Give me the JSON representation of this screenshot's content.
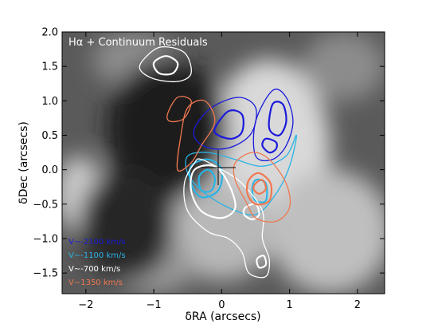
{
  "chart_data": {
    "type": "contour",
    "title": "Hα + Continuum Residuals",
    "xlabel": "δRA (arcsecs)",
    "ylabel": "δDec (arcsecs)",
    "xlim": [
      -2.35,
      2.4
    ],
    "ylim": [
      -1.8,
      2.0
    ],
    "xticks": [
      -2,
      -1,
      0,
      1,
      2
    ],
    "yticks": [
      -1.5,
      -1.0,
      -0.5,
      0.0,
      0.5,
      1.0,
      1.5,
      2.0
    ],
    "xtick_labels": [
      "−2",
      "−1",
      "0",
      "1",
      "2"
    ],
    "ytick_labels": [
      "−1.5",
      "−1.0",
      "−0.5",
      "0.0",
      "0.5",
      "1.0",
      "1.5",
      "2.0"
    ],
    "background": "grayscale image",
    "legend_placement": "lower-left",
    "series": [
      {
        "name": "V∼-2100 km/s",
        "color": "#1a1adb",
        "contours": [
          {
            "level": 1,
            "points": [
              [
                -0.4,
                0.6
              ],
              [
                -0.15,
                0.9
              ],
              [
                0.25,
                1.05
              ],
              [
                0.5,
                0.9
              ],
              [
                0.45,
                0.55
              ],
              [
                0.2,
                0.35
              ],
              [
                -0.1,
                0.3
              ],
              [
                -0.35,
                0.4
              ]
            ]
          },
          {
            "level": 2,
            "points": [
              [
                -0.1,
                0.6
              ],
              [
                0.1,
                0.85
              ],
              [
                0.3,
                0.8
              ],
              [
                0.3,
                0.55
              ],
              [
                0.15,
                0.45
              ],
              [
                -0.05,
                0.5
              ]
            ]
          },
          {
            "level": 1,
            "points": [
              [
                0.5,
                0.2
              ],
              [
                0.5,
                0.7
              ],
              [
                0.75,
                1.15
              ],
              [
                0.95,
                1.05
              ],
              [
                1.05,
                0.7
              ],
              [
                0.95,
                0.35
              ],
              [
                0.75,
                0.15
              ]
            ]
          },
          {
            "level": 2,
            "points": [
              [
                0.7,
                0.6
              ],
              [
                0.75,
                0.95
              ],
              [
                0.9,
                0.95
              ],
              [
                0.95,
                0.7
              ],
              [
                0.85,
                0.5
              ]
            ]
          },
          {
            "level": 2,
            "points": [
              [
                0.6,
                0.35
              ],
              [
                0.65,
                0.45
              ],
              [
                0.8,
                0.4
              ],
              [
                0.8,
                0.3
              ],
              [
                0.7,
                0.25
              ]
            ]
          }
        ]
      },
      {
        "name": "V∼-1100 km/s",
        "color": "#29b4e6",
        "contours": [
          {
            "level": 1,
            "points": [
              [
                -0.5,
                0.2
              ],
              [
                -0.2,
                0.25
              ],
              [
                0.2,
                0.15
              ],
              [
                0.6,
                0.05
              ],
              [
                0.95,
                0.2
              ],
              [
                1.1,
                0.5
              ],
              [
                1.0,
                0.05
              ],
              [
                0.8,
                -0.35
              ],
              [
                0.5,
                -0.65
              ],
              [
                0.1,
                -0.55
              ],
              [
                -0.3,
                -0.3
              ],
              [
                -0.5,
                -0.05
              ]
            ]
          },
          {
            "level": 2,
            "points": [
              [
                -0.45,
                0.05
              ],
              [
                -0.2,
                0.15
              ],
              [
                0.0,
                0.0
              ],
              [
                -0.05,
                -0.3
              ],
              [
                -0.3,
                -0.4
              ],
              [
                -0.45,
                -0.2
              ]
            ]
          },
          {
            "level": 3,
            "points": [
              [
                -0.33,
                -0.1
              ],
              [
                -0.2,
                0.0
              ],
              [
                -0.1,
                -0.12
              ],
              [
                -0.15,
                -0.3
              ],
              [
                -0.3,
                -0.3
              ]
            ]
          },
          {
            "level": 2,
            "points": [
              [
                0.45,
                -0.3
              ],
              [
                0.5,
                -0.15
              ],
              [
                0.65,
                -0.2
              ],
              [
                0.65,
                -0.45
              ],
              [
                0.5,
                -0.45
              ]
            ]
          }
        ]
      },
      {
        "name": "V∼-700 km/s",
        "color": "#ffffff",
        "contours": [
          {
            "level": 1,
            "points": [
              [
                -1.15,
                1.6
              ],
              [
                -0.9,
                1.78
              ],
              [
                -0.55,
                1.7
              ],
              [
                -0.45,
                1.4
              ],
              [
                -0.65,
                1.28
              ],
              [
                -1.0,
                1.32
              ],
              [
                -1.2,
                1.45
              ]
            ]
          },
          {
            "level": 2,
            "points": [
              [
                -1.0,
                1.55
              ],
              [
                -0.82,
                1.65
              ],
              [
                -0.65,
                1.55
              ],
              [
                -0.72,
                1.4
              ],
              [
                -0.92,
                1.4
              ]
            ]
          },
          {
            "level": 1,
            "points": [
              [
                -0.4,
                0.1
              ],
              [
                -0.3,
                0.15
              ],
              [
                0.0,
                0.0
              ],
              [
                0.3,
                -0.2
              ],
              [
                0.6,
                -0.6
              ],
              [
                0.6,
                -1.0
              ],
              [
                0.7,
                -1.3
              ],
              [
                0.65,
                -1.55
              ],
              [
                0.4,
                -1.5
              ],
              [
                0.3,
                -1.2
              ],
              [
                0.1,
                -1.0
              ],
              [
                -0.2,
                -0.9
              ],
              [
                -0.5,
                -0.6
              ],
              [
                -0.55,
                -0.2
              ]
            ]
          },
          {
            "level": 2,
            "points": [
              [
                -0.4,
                0.0
              ],
              [
                -0.1,
                0.05
              ],
              [
                0.1,
                -0.2
              ],
              [
                0.2,
                -0.55
              ],
              [
                0.0,
                -0.7
              ],
              [
                -0.3,
                -0.6
              ],
              [
                -0.45,
                -0.3
              ]
            ]
          },
          {
            "level": 2,
            "points": [
              [
                0.35,
                -0.55
              ],
              [
                0.5,
                -0.5
              ],
              [
                0.55,
                -0.65
              ],
              [
                0.45,
                -0.72
              ],
              [
                0.33,
                -0.65
              ]
            ]
          },
          {
            "level": 2,
            "points": [
              [
                0.52,
                -1.3
              ],
              [
                0.62,
                -1.25
              ],
              [
                0.65,
                -1.38
              ],
              [
                0.55,
                -1.42
              ]
            ]
          }
        ]
      },
      {
        "name": "V∼1350 km/s",
        "color": "#f07850",
        "contours": [
          {
            "level": 1,
            "points": [
              [
                -0.65,
                0.0
              ],
              [
                -0.6,
                0.5
              ],
              [
                -0.5,
                0.9
              ],
              [
                -0.25,
                1.0
              ],
              [
                -0.1,
                0.7
              ],
              [
                -0.3,
                0.35
              ],
              [
                -0.45,
                0.1
              ]
            ]
          },
          {
            "level": 1,
            "points": [
              [
                -0.8,
                0.8
              ],
              [
                -0.65,
                1.05
              ],
              [
                -0.45,
                1.0
              ],
              [
                -0.55,
                0.75
              ],
              [
                -0.75,
                0.7
              ]
            ]
          },
          {
            "level": 1,
            "points": [
              [
                0.2,
                0.1
              ],
              [
                0.45,
                0.25
              ],
              [
                0.7,
                0.15
              ],
              [
                0.95,
                -0.2
              ],
              [
                1.0,
                -0.55
              ],
              [
                0.8,
                -0.75
              ],
              [
                0.5,
                -0.7
              ],
              [
                0.35,
                -0.45
              ],
              [
                0.2,
                -0.15
              ]
            ]
          },
          {
            "level": 2,
            "points": [
              [
                0.4,
                -0.15
              ],
              [
                0.55,
                -0.05
              ],
              [
                0.72,
                -0.2
              ],
              [
                0.7,
                -0.45
              ],
              [
                0.5,
                -0.5
              ],
              [
                0.38,
                -0.35
              ]
            ]
          },
          {
            "level": 3,
            "points": [
              [
                0.5,
                -0.2
              ],
              [
                0.6,
                -0.15
              ],
              [
                0.65,
                -0.28
              ],
              [
                0.55,
                -0.35
              ],
              [
                0.47,
                -0.28
              ]
            ]
          }
        ]
      }
    ],
    "background_regions": [
      {
        "tone": 0.85,
        "x": 0.7,
        "y": 0.3,
        "rx": 0.9,
        "ry": 1.3
      },
      {
        "tone": 0.75,
        "x": 1.6,
        "y": -0.9,
        "rx": 0.9,
        "ry": 0.9
      },
      {
        "tone": 0.72,
        "x": 0.0,
        "y": -0.9,
        "rx": 0.8,
        "ry": 0.7
      },
      {
        "tone": 0.8,
        "x": -2.1,
        "y": -0.35,
        "rx": 0.35,
        "ry": 0.55
      },
      {
        "tone": 0.55,
        "x": -1.3,
        "y": 1.6,
        "rx": 0.6,
        "ry": 0.4
      },
      {
        "tone": 0.55,
        "x": 1.8,
        "y": 1.5,
        "rx": 0.6,
        "ry": 0.5
      },
      {
        "tone": 0.6,
        "x": -1.0,
        "y": -1.4,
        "rx": 0.6,
        "ry": 0.4
      },
      {
        "tone": 0.12,
        "x": -0.8,
        "y": 0.6,
        "rx": 0.9,
        "ry": 1.0
      },
      {
        "tone": 0.15,
        "x": -1.4,
        "y": -0.8,
        "rx": 0.7,
        "ry": 0.8
      }
    ]
  }
}
